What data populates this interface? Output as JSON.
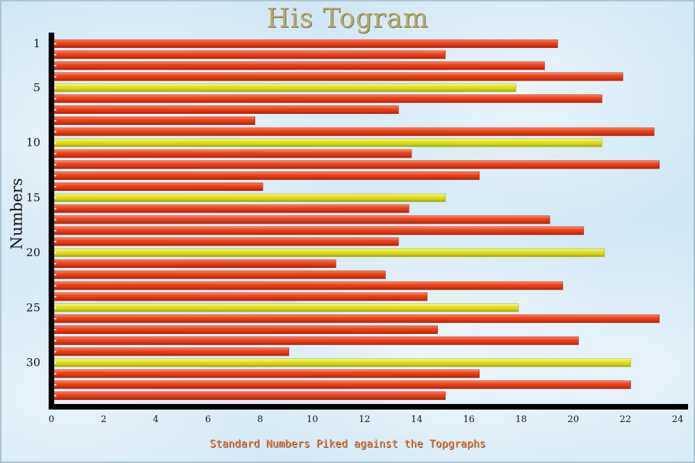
{
  "chart_data": {
    "type": "bar",
    "orientation": "horizontal",
    "title": "His Togram",
    "xlabel": "Standard Numbers Piked against the Topgraphs",
    "ylabel": "Numbers",
    "xlim": [
      0,
      24
    ],
    "x_ticks": [
      0,
      2,
      4,
      6,
      8,
      10,
      12,
      14,
      16,
      18,
      20,
      22,
      24
    ],
    "y_tick_labels": [
      "1",
      "5",
      "10",
      "15",
      "20",
      "25",
      "30"
    ],
    "y_tick_positions": [
      1,
      5,
      10,
      15,
      20,
      25,
      30
    ],
    "categories": [
      1,
      2,
      3,
      4,
      5,
      6,
      7,
      8,
      9,
      10,
      11,
      12,
      13,
      14,
      15,
      16,
      17,
      18,
      19,
      20,
      21,
      22,
      23,
      24,
      25,
      26,
      27,
      28,
      29,
      30,
      31,
      32,
      33
    ],
    "values": [
      19.4,
      15.1,
      18.9,
      21.9,
      17.8,
      21.1,
      13.3,
      7.8,
      23.1,
      21.1,
      13.8,
      23.3,
      16.4,
      8.1,
      15.1,
      13.7,
      19.1,
      20.4,
      13.3,
      21.2,
      10.9,
      12.8,
      19.6,
      14.4,
      17.9,
      23.3,
      14.8,
      20.2,
      9.1,
      22.2,
      16.4,
      22.2,
      15.1
    ],
    "highlighted_bars": [
      5,
      10,
      15,
      20,
      25,
      30
    ],
    "colors": {
      "bar": "#e0401a",
      "highlight": "#d6d61a",
      "axis": "#000000"
    },
    "grid": false,
    "legend": "none"
  }
}
